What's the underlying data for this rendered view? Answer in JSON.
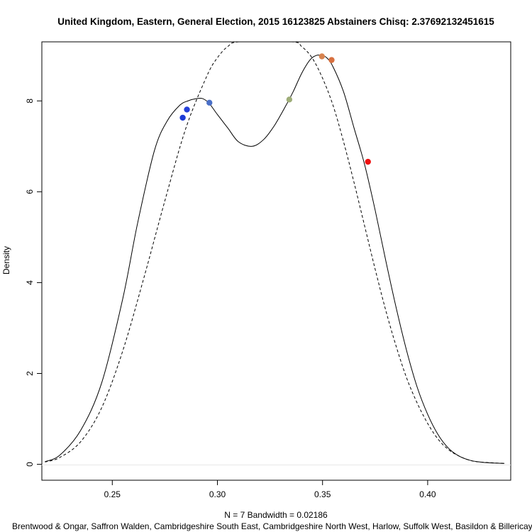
{
  "chart_data": {
    "type": "line",
    "title": "United Kingdom, Eastern, General Election, 2015 16123825 Abstainers Chisq: 2.37692132451615",
    "xlabel": "N = 7   Bandwidth = 0.02186",
    "ylabel": "Density",
    "subtitle": "Brentwood & Ongar, Saffron Walden, Cambridgeshire South East, Cambridgeshire North West, Harlow, Suffolk West, Basildon & Billericay",
    "xlim": [
      0.2165,
      0.4395
    ],
    "ylim": [
      -0.35,
      9.3
    ],
    "x_ticks": [
      0.25,
      0.3,
      0.35,
      0.4
    ],
    "x_tick_labels": [
      "0.25",
      "0.30",
      "0.35",
      "0.40"
    ],
    "y_ticks": [
      0,
      2,
      4,
      6,
      8
    ],
    "y_tick_labels": [
      "0",
      "2",
      "4",
      "6",
      "8"
    ],
    "grid": false,
    "series": [
      {
        "style": "solid",
        "x": [
          0.218,
          0.225,
          0.235,
          0.245,
          0.255,
          0.262,
          0.27,
          0.276,
          0.282,
          0.286,
          0.29,
          0.293,
          0.296,
          0.3,
          0.305,
          0.31,
          0.3165,
          0.322,
          0.327,
          0.332,
          0.336,
          0.34,
          0.344,
          0.347,
          0.3495,
          0.352,
          0.355,
          0.36,
          0.365,
          0.37,
          0.375,
          0.38,
          0.385,
          0.39,
          0.395,
          0.4,
          0.405,
          0.41,
          0.415,
          0.42,
          0.425,
          0.43,
          0.4365
        ],
        "y": [
          0.06,
          0.2,
          0.75,
          1.8,
          3.65,
          5.3,
          6.9,
          7.55,
          7.9,
          8.0,
          8.05,
          8.05,
          7.95,
          7.7,
          7.4,
          7.1,
          7.0,
          7.15,
          7.45,
          7.85,
          8.2,
          8.6,
          8.9,
          9.0,
          9.0,
          8.95,
          8.75,
          8.2,
          7.4,
          6.6,
          5.6,
          4.5,
          3.45,
          2.5,
          1.7,
          1.1,
          0.65,
          0.35,
          0.18,
          0.09,
          0.05,
          0.03,
          0.02
        ]
      },
      {
        "style": "dashed",
        "x": [
          0.218,
          0.225,
          0.235,
          0.245,
          0.255,
          0.265,
          0.275,
          0.285,
          0.295,
          0.3,
          0.305,
          0.3105,
          0.3355,
          0.34,
          0.345,
          0.35,
          0.355,
          0.36,
          0.365,
          0.37,
          0.375,
          0.38,
          0.385,
          0.39,
          0.395,
          0.4,
          0.405,
          0.41,
          0.415,
          0.42,
          0.425,
          0.4365
        ],
        "y": [
          0.05,
          0.15,
          0.5,
          1.25,
          2.5,
          4.1,
          5.8,
          7.4,
          8.55,
          8.95,
          9.2,
          9.3,
          9.3,
          9.2,
          8.95,
          8.5,
          7.9,
          7.1,
          6.2,
          5.25,
          4.3,
          3.4,
          2.6,
          1.9,
          1.35,
          0.9,
          0.55,
          0.32,
          0.18,
          0.09,
          0.05,
          0.02
        ]
      }
    ],
    "points": [
      {
        "x": 0.2835,
        "y": 7.63,
        "color": "#1c3bd6"
      },
      {
        "x": 0.2855,
        "y": 7.81,
        "color": "#2540d8"
      },
      {
        "x": 0.2962,
        "y": 7.96,
        "color": "#4a6fc7"
      },
      {
        "x": 0.3342,
        "y": 8.03,
        "color": "#9ead78"
      },
      {
        "x": 0.3497,
        "y": 8.98,
        "color": "#d7834f"
      },
      {
        "x": 0.3543,
        "y": 8.9,
        "color": "#d8703f"
      },
      {
        "x": 0.3716,
        "y": 6.66,
        "color": "#ee1010"
      }
    ]
  }
}
